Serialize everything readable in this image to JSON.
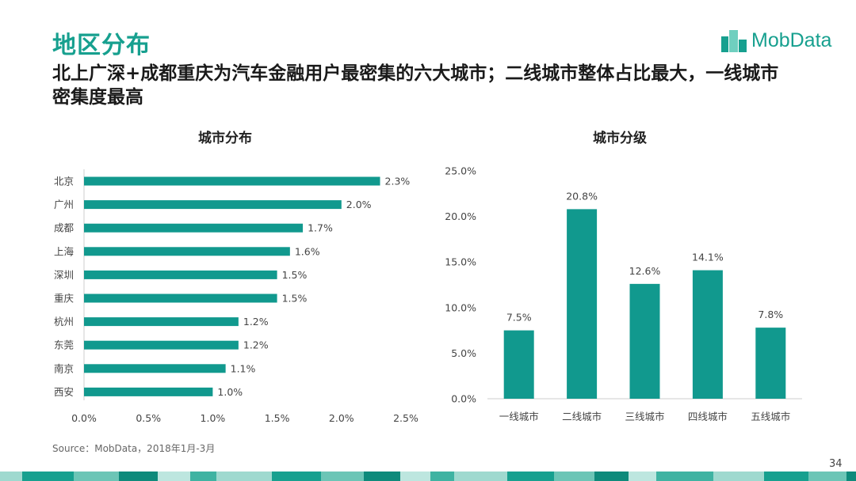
{
  "header": {
    "section_title": "地区分布",
    "headline": "北上广深+成都重庆为汽车金融用户最密集的六大城市；二线城市整体占比最大，一线城市密集度最高",
    "logo_text": "MobData"
  },
  "colors": {
    "accent": "#17a08f",
    "bar": "#11998e"
  },
  "chart_data": [
    {
      "type": "bar",
      "orientation": "horizontal",
      "title": "城市分布",
      "categories": [
        "北京",
        "广州",
        "成都",
        "上海",
        "深圳",
        "重庆",
        "杭州",
        "东莞",
        "南京",
        "西安"
      ],
      "values": [
        2.3,
        2.0,
        1.7,
        1.6,
        1.5,
        1.5,
        1.2,
        1.2,
        1.1,
        1.0
      ],
      "value_labels": [
        "2.3%",
        "2.0%",
        "1.7%",
        "1.6%",
        "1.5%",
        "1.5%",
        "1.2%",
        "1.2%",
        "1.1%",
        "1.0%"
      ],
      "xlim": [
        0,
        2.5
      ],
      "xticks": [
        "0.0%",
        "0.5%",
        "1.0%",
        "1.5%",
        "2.0%",
        "2.5%"
      ],
      "grid": false
    },
    {
      "type": "bar",
      "orientation": "vertical",
      "title": "城市分级",
      "categories": [
        "一线城市",
        "二线城市",
        "三线城市",
        "四线城市",
        "五线城市"
      ],
      "values": [
        7.5,
        20.8,
        12.6,
        14.1,
        7.8
      ],
      "value_labels": [
        "7.5%",
        "20.8%",
        "12.6%",
        "14.1%",
        "7.8%"
      ],
      "ylim": [
        0,
        25
      ],
      "yticks": [
        "0.0%",
        "5.0%",
        "10.0%",
        "15.0%",
        "20.0%",
        "25.0%"
      ],
      "grid": false
    }
  ],
  "footer": {
    "source": "Source：MobData，2018年1月-3月",
    "page_number": "34"
  }
}
